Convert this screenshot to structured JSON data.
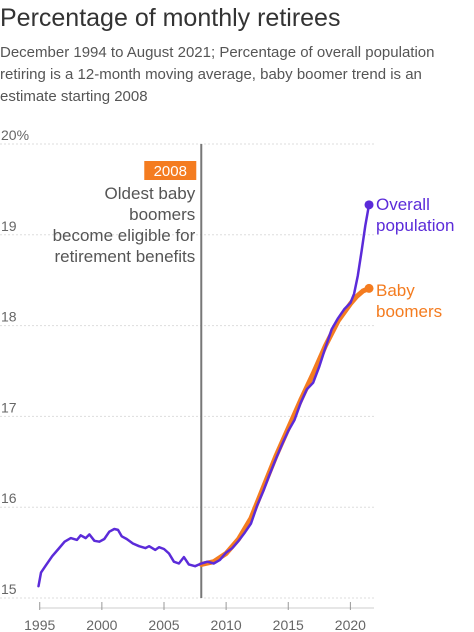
{
  "chart_data": {
    "type": "line",
    "title": "Percentage of monthly retirees",
    "subtitle": "December 1994 to August 2021;  Percentage of overall population retiring is a 12-month moving average, baby boomer trend is an estimate starting 2008",
    "xlim": [
      1994.7,
      2021.9
    ],
    "ylim": [
      15,
      20
    ],
    "x_ticks": [
      1995,
      2000,
      2005,
      2010,
      2015,
      2020
    ],
    "y_ticks": [
      15,
      16,
      17,
      18,
      19,
      20
    ],
    "y_tick_labels": [
      "15",
      "16",
      "17",
      "18",
      "19",
      "20%"
    ],
    "grid": "horizontal",
    "colors": {
      "overall": "#5b2bd9",
      "boomers": "#f47c20",
      "annotation_line": "#777777",
      "grid": "#dddddd"
    },
    "annotation": {
      "x": 2008.0,
      "year_label": "2008",
      "lines": [
        "Oldest baby",
        "boomers",
        "become eligible for",
        "retirement benefits"
      ]
    },
    "series": [
      {
        "name": "Overall population",
        "label_lines": [
          "Overall",
          "population"
        ],
        "color": "#5b2bd9",
        "points": [
          [
            1994.9,
            15.13
          ],
          [
            1995.1,
            15.28
          ],
          [
            1995.5,
            15.36
          ],
          [
            1996.0,
            15.46
          ],
          [
            1996.5,
            15.54
          ],
          [
            1997.0,
            15.62
          ],
          [
            1997.5,
            15.66
          ],
          [
            1998.0,
            15.64
          ],
          [
            1998.3,
            15.69
          ],
          [
            1998.7,
            15.66
          ],
          [
            1999.0,
            15.7
          ],
          [
            1999.4,
            15.63
          ],
          [
            1999.8,
            15.62
          ],
          [
            2000.2,
            15.65
          ],
          [
            2000.6,
            15.73
          ],
          [
            2001.0,
            15.76
          ],
          [
            2001.3,
            15.75
          ],
          [
            2001.6,
            15.68
          ],
          [
            2002.0,
            15.65
          ],
          [
            2002.5,
            15.6
          ],
          [
            2003.0,
            15.57
          ],
          [
            2003.5,
            15.55
          ],
          [
            2003.8,
            15.57
          ],
          [
            2004.3,
            15.53
          ],
          [
            2004.6,
            15.56
          ],
          [
            2005.0,
            15.54
          ],
          [
            2005.4,
            15.49
          ],
          [
            2005.8,
            15.4
          ],
          [
            2006.2,
            15.38
          ],
          [
            2006.6,
            15.45
          ],
          [
            2007.0,
            15.37
          ],
          [
            2007.5,
            15.35
          ],
          [
            2008.0,
            15.38
          ],
          [
            2008.5,
            15.4
          ],
          [
            2009.0,
            15.38
          ],
          [
            2009.5,
            15.42
          ],
          [
            2010.0,
            15.5
          ],
          [
            2010.5,
            15.55
          ],
          [
            2011.0,
            15.63
          ],
          [
            2011.5,
            15.72
          ],
          [
            2012.0,
            15.82
          ],
          [
            2012.5,
            16.02
          ],
          [
            2013.0,
            16.18
          ],
          [
            2013.5,
            16.36
          ],
          [
            2014.0,
            16.53
          ],
          [
            2014.5,
            16.69
          ],
          [
            2015.0,
            16.84
          ],
          [
            2015.5,
            16.96
          ],
          [
            2016.0,
            17.15
          ],
          [
            2016.5,
            17.3
          ],
          [
            2017.0,
            17.37
          ],
          [
            2017.5,
            17.55
          ],
          [
            2018.0,
            17.76
          ],
          [
            2018.5,
            17.96
          ],
          [
            2019.0,
            18.08
          ],
          [
            2019.5,
            18.18
          ],
          [
            2020.0,
            18.25
          ],
          [
            2020.3,
            18.35
          ],
          [
            2020.6,
            18.55
          ],
          [
            2020.9,
            18.82
          ],
          [
            2021.2,
            19.1
          ],
          [
            2021.5,
            19.33
          ]
        ]
      },
      {
        "name": "Baby boomers",
        "label_lines": [
          "Baby",
          "boomers"
        ],
        "color": "#f47c20",
        "points": [
          [
            2008.0,
            15.37
          ],
          [
            2009.0,
            15.4
          ],
          [
            2010.0,
            15.49
          ],
          [
            2011.0,
            15.65
          ],
          [
            2012.0,
            15.88
          ],
          [
            2013.0,
            16.22
          ],
          [
            2014.0,
            16.56
          ],
          [
            2015.0,
            16.87
          ],
          [
            2016.0,
            17.18
          ],
          [
            2017.0,
            17.47
          ],
          [
            2018.0,
            17.78
          ],
          [
            2019.0,
            18.05
          ],
          [
            2020.0,
            18.24
          ],
          [
            2020.5,
            18.32
          ],
          [
            2021.0,
            18.38
          ],
          [
            2021.5,
            18.41
          ]
        ]
      }
    ]
  }
}
